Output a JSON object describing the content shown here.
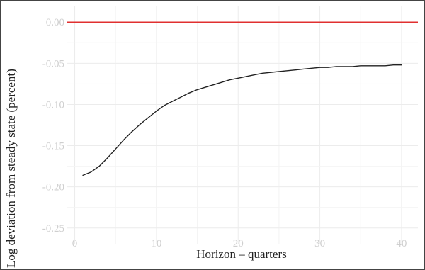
{
  "chart_data": {
    "type": "line",
    "title": "",
    "xlabel": "Horizon – quarters",
    "ylabel": "Log deviation from steady state (percent)",
    "xlim": [
      -1,
      42
    ],
    "ylim": [
      -0.27,
      0.02
    ],
    "xticks": [
      0,
      10,
      20,
      30,
      40
    ],
    "xtick_labels": [
      "0",
      "10",
      "20",
      "30",
      "40"
    ],
    "yticks": [
      0.0,
      -0.05,
      -0.1,
      -0.15,
      -0.2,
      -0.25
    ],
    "ytick_labels": [
      "0.00",
      "-0.05",
      "-0.10",
      "-0.15",
      "-0.20",
      "-0.25"
    ],
    "grid": true,
    "reference_line": {
      "y": 0.0,
      "color": "#e03030"
    },
    "series": [
      {
        "color": "#222222",
        "x": [
          1,
          2,
          3,
          4,
          5,
          6,
          7,
          8,
          9,
          10,
          11,
          12,
          13,
          14,
          15,
          16,
          17,
          18,
          19,
          20,
          21,
          22,
          23,
          24,
          25,
          26,
          27,
          28,
          29,
          30,
          31,
          32,
          33,
          34,
          35,
          36,
          37,
          38,
          39,
          40
        ],
        "y": [
          -0.186,
          -0.182,
          -0.175,
          -0.165,
          -0.154,
          -0.143,
          -0.133,
          -0.124,
          -0.116,
          -0.108,
          -0.101,
          -0.096,
          -0.091,
          -0.086,
          -0.082,
          -0.079,
          -0.076,
          -0.073,
          -0.07,
          -0.068,
          -0.066,
          -0.064,
          -0.062,
          -0.061,
          -0.06,
          -0.059,
          -0.058,
          -0.057,
          -0.056,
          -0.055,
          -0.055,
          -0.054,
          -0.054,
          -0.054,
          -0.053,
          -0.053,
          -0.053,
          -0.053,
          -0.052,
          -0.052
        ]
      }
    ]
  }
}
